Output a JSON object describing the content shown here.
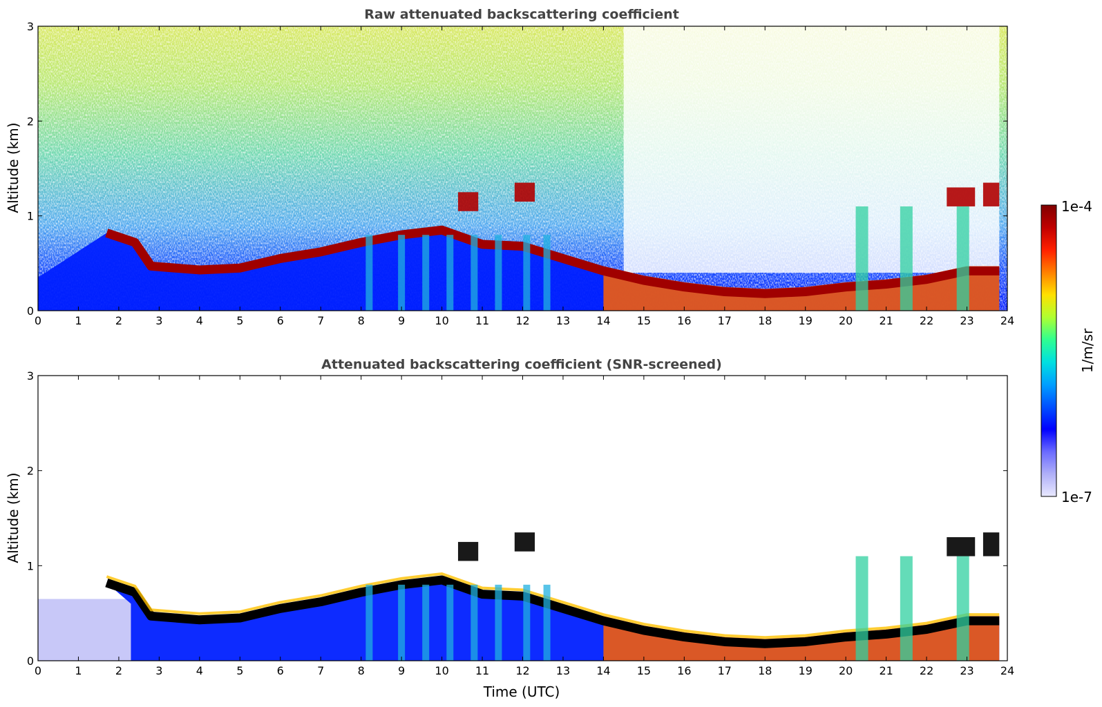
{
  "chart_data": [
    {
      "type": "heatmap",
      "title": "Raw attenuated backscattering coefficient",
      "xlabel": "",
      "ylabel": "Altitude (km)",
      "xlim": [
        0,
        24
      ],
      "ylim": [
        0,
        3
      ],
      "xticks": [
        "0",
        "1",
        "2",
        "3",
        "4",
        "5",
        "6",
        "7",
        "8",
        "9",
        "10",
        "11",
        "12",
        "13",
        "14",
        "15",
        "16",
        "17",
        "18",
        "19",
        "20",
        "21",
        "22",
        "23",
        "24"
      ],
      "yticks": [
        "0",
        "1",
        "2",
        "3"
      ],
      "features": {
        "boundary_layer_top_km": [
          {
            "t": 1.7,
            "z": 0.82
          },
          {
            "t": 2.4,
            "z": 0.72
          },
          {
            "t": 2.8,
            "z": 0.47
          },
          {
            "t": 4,
            "z": 0.43
          },
          {
            "t": 5,
            "z": 0.45
          },
          {
            "t": 6,
            "z": 0.55
          },
          {
            "t": 7,
            "z": 0.62
          },
          {
            "t": 8,
            "z": 0.72
          },
          {
            "t": 9,
            "z": 0.8
          },
          {
            "t": 10,
            "z": 0.85
          },
          {
            "t": 11,
            "z": 0.7
          },
          {
            "t": 12,
            "z": 0.68
          },
          {
            "t": 13,
            "z": 0.55
          },
          {
            "t": 14,
            "z": 0.42
          },
          {
            "t": 15,
            "z": 0.32
          },
          {
            "t": 16,
            "z": 0.25
          },
          {
            "t": 17,
            "z": 0.2
          },
          {
            "t": 18,
            "z": 0.18
          },
          {
            "t": 19,
            "z": 0.2
          },
          {
            "t": 20,
            "z": 0.25
          },
          {
            "t": 21,
            "z": 0.28
          },
          {
            "t": 22,
            "z": 0.33
          },
          {
            "t": 23,
            "z": 0.42
          },
          {
            "t": 23.8,
            "z": 0.42
          }
        ],
        "clouds": [
          {
            "t0": 10.4,
            "t1": 10.9,
            "z0": 1.05,
            "z1": 1.25
          },
          {
            "t0": 11.8,
            "t1": 12.3,
            "z0": 1.15,
            "z1": 1.35
          },
          {
            "t0": 22.5,
            "t1": 23.2,
            "z0": 1.1,
            "z1": 1.3
          },
          {
            "t0": 23.4,
            "t1": 23.8,
            "z0": 1.1,
            "z1": 1.35
          }
        ]
      }
    },
    {
      "type": "heatmap",
      "title": "Attenuated backscattering coefficient (SNR-screened)",
      "xlabel": "Time (UTC)",
      "ylabel": "Altitude (km)",
      "xlim": [
        0,
        24
      ],
      "ylim": [
        0,
        3
      ],
      "xticks": [
        "0",
        "1",
        "2",
        "3",
        "4",
        "5",
        "6",
        "7",
        "8",
        "9",
        "10",
        "11",
        "12",
        "13",
        "14",
        "15",
        "16",
        "17",
        "18",
        "19",
        "20",
        "21",
        "22",
        "23",
        "24"
      ],
      "yticks": [
        "0",
        "1",
        "2",
        "3"
      ]
    }
  ],
  "colorbar": {
    "label": "1/m/sr",
    "min_label": "1e-7",
    "max_label": "1e-4",
    "colors": [
      "#e8e8ff",
      "#b0b0f8",
      "#6a6aff",
      "#0000ff",
      "#0050ff",
      "#00a0ff",
      "#00e0e0",
      "#30ff90",
      "#b0ff30",
      "#ffe000",
      "#ff8000",
      "#ff2000",
      "#c00000",
      "#800000"
    ]
  }
}
